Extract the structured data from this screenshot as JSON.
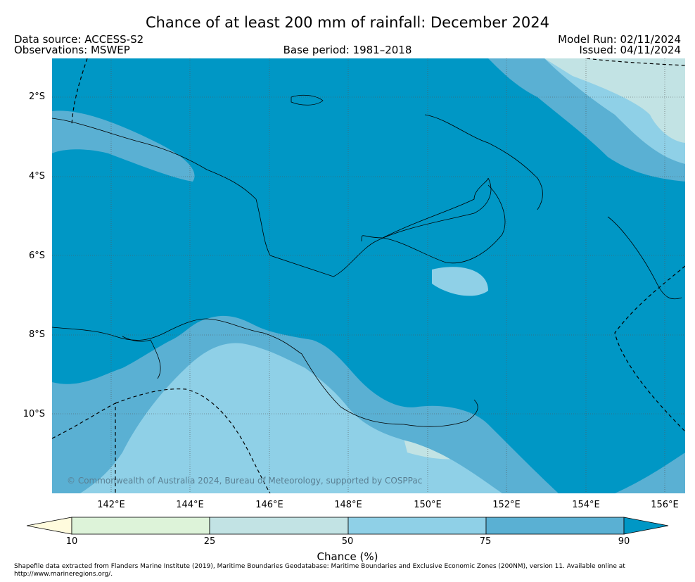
{
  "header": {
    "title": "Chance of at least 200 mm of rainfall: December 2024",
    "data_source": "Data source: ACCESS-S2",
    "observations": "Observations: MSWEP",
    "base_period": "Base period: 1981–2018",
    "model_run": "Model Run: 02/11/2024",
    "issued": "Issued: 04/11/2024"
  },
  "map": {
    "lat_labels": [
      "2°S",
      "4°S",
      "6°S",
      "8°S",
      "10°S"
    ],
    "lon_labels": [
      "142°E",
      "144°E",
      "146°E",
      "148°E",
      "150°E",
      "152°E",
      "154°E",
      "156°E"
    ],
    "copyright": "© Commonwealth of Australia 2024, Bureau of Meteorology, supported by COSPPac"
  },
  "colorbar": {
    "ticks": [
      "10",
      "25",
      "50",
      "75",
      "90"
    ],
    "title": "Chance (%)",
    "colors": [
      "#fffbdd",
      "#ddf3d9",
      "#c2e3e4",
      "#8fd0e7",
      "#5ab0d3",
      "#0097c5"
    ]
  },
  "footer": {
    "line1": "Shapefile data extracted from Flanders Marine Institute (2019), Maritime Boundaries Geodatabase: Maritime Boundaries and Exclusive Economic Zones (200NM), version 11. Available online at",
    "line2": "http://www.marineregions.org/."
  }
}
